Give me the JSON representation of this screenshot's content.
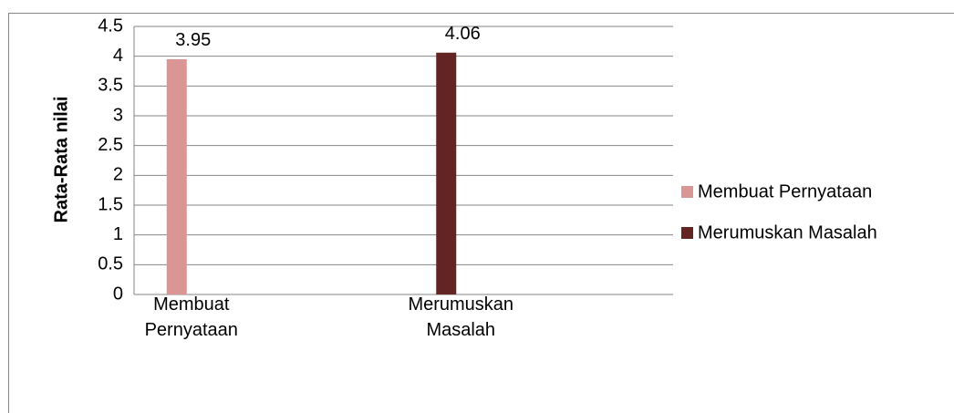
{
  "chart_data": {
    "type": "bar",
    "y_label": "Rata-Rata nilai",
    "categories": [
      "Membuat Pernyataan",
      "Merumuskan Masalah"
    ],
    "series": [
      {
        "name": "Membuat Pernyataan",
        "color": "#d99694",
        "values": [
          3.95,
          null
        ]
      },
      {
        "name": "Merumuskan Masalah",
        "color": "#632523",
        "values": [
          null,
          4.06
        ]
      }
    ],
    "ylim": [
      0,
      4.5
    ],
    "yticks": [
      0,
      0.5,
      1,
      1.5,
      2,
      2.5,
      3,
      3.5,
      4,
      4.5
    ],
    "grid": true,
    "legend": "right"
  }
}
